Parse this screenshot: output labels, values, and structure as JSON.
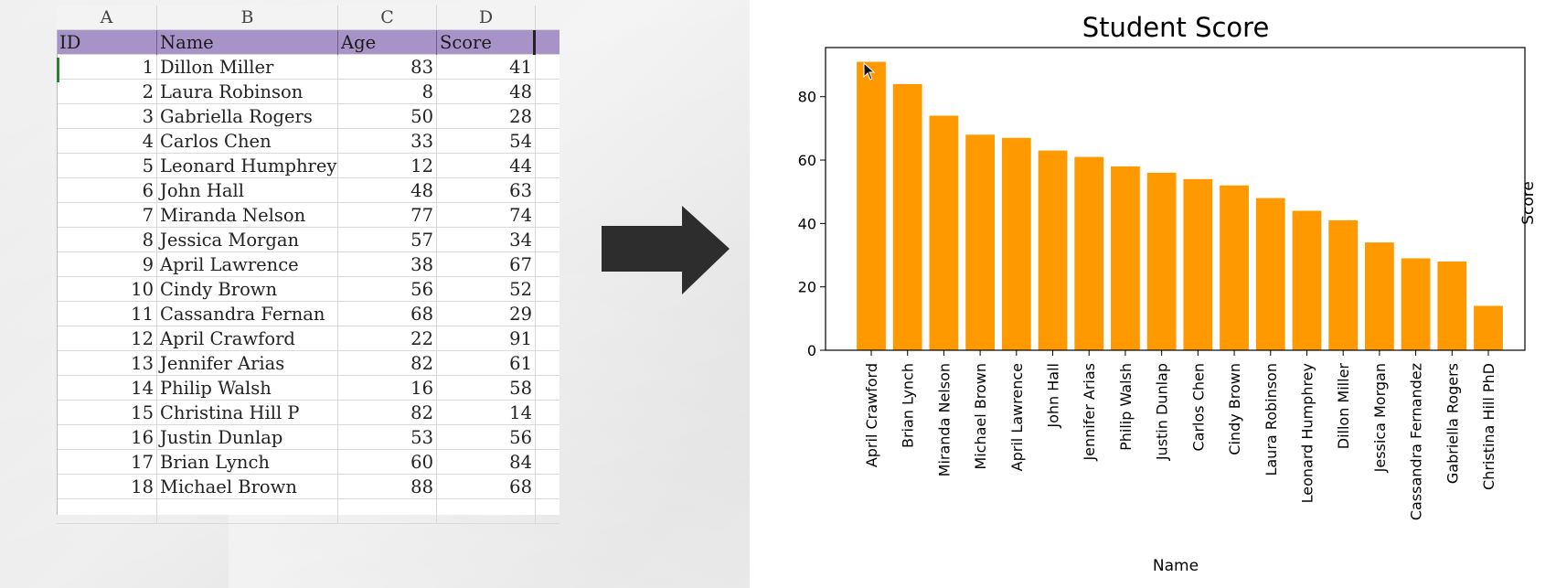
{
  "sheet": {
    "columns": [
      "A",
      "B",
      "C",
      "D"
    ],
    "header": {
      "id": "ID",
      "name": "Name",
      "age": "Age",
      "score": "Score"
    },
    "rows": [
      {
        "id": "1",
        "name": "Dillon Miller",
        "age": "83",
        "score": "41"
      },
      {
        "id": "2",
        "name": "Laura Robinson",
        "age": "8",
        "score": "48"
      },
      {
        "id": "3",
        "name": "Gabriella Rogers",
        "age": "50",
        "score": "28"
      },
      {
        "id": "4",
        "name": "Carlos Chen",
        "age": "33",
        "score": "54"
      },
      {
        "id": "5",
        "name": "Leonard Humphrey",
        "age": "12",
        "score": "44"
      },
      {
        "id": "6",
        "name": "John Hall",
        "age": "48",
        "score": "63"
      },
      {
        "id": "7",
        "name": "Miranda Nelson",
        "age": "77",
        "score": "74"
      },
      {
        "id": "8",
        "name": "Jessica Morgan",
        "age": "57",
        "score": "34"
      },
      {
        "id": "9",
        "name": "April Lawrence",
        "age": "38",
        "score": "67"
      },
      {
        "id": "10",
        "name": "Cindy Brown",
        "age": "56",
        "score": "52"
      },
      {
        "id": "11",
        "name": "Cassandra Fernan",
        "age": "68",
        "score": "29"
      },
      {
        "id": "12",
        "name": "April Crawford",
        "age": "22",
        "score": "91"
      },
      {
        "id": "13",
        "name": "Jennifer Arias",
        "age": "82",
        "score": "61"
      },
      {
        "id": "14",
        "name": "Philip Walsh",
        "age": "16",
        "score": "58"
      },
      {
        "id": "15",
        "name": "Christina Hill P",
        "age": "82",
        "score": "14"
      },
      {
        "id": "16",
        "name": "Justin Dunlap",
        "age": "53",
        "score": "56"
      },
      {
        "id": "17",
        "name": "Brian Lynch",
        "age": "60",
        "score": "84"
      },
      {
        "id": "18",
        "name": "Michael Brown",
        "age": "88",
        "score": "68"
      }
    ]
  },
  "arrow_icon": "right-arrow-icon",
  "chart_data": {
    "type": "bar",
    "title": "Student Score",
    "xlabel": "Name",
    "ylabel": "Score",
    "categories": [
      "April Crawford",
      "Brian Lynch",
      "Miranda Nelson",
      "Michael Brown",
      "April Lawrence",
      "John Hall",
      "Jennifer Arias",
      "Philip Walsh",
      "Justin Dunlap",
      "Carlos Chen",
      "Cindy Brown",
      "Laura Robinson",
      "Leonard Humphrey",
      "Dillon Miller",
      "Jessica Morgan",
      "Cassandra Fernandez",
      "Gabriella Rogers",
      "Christina Hill PhD"
    ],
    "values": [
      91,
      84,
      74,
      68,
      67,
      63,
      61,
      58,
      56,
      54,
      52,
      48,
      44,
      41,
      34,
      29,
      28,
      14
    ],
    "ylim": [
      0,
      95.5
    ],
    "yticks": [
      0,
      20,
      40,
      60,
      80
    ],
    "bar_color": "#ff9900",
    "grid": false,
    "legend": "none"
  }
}
